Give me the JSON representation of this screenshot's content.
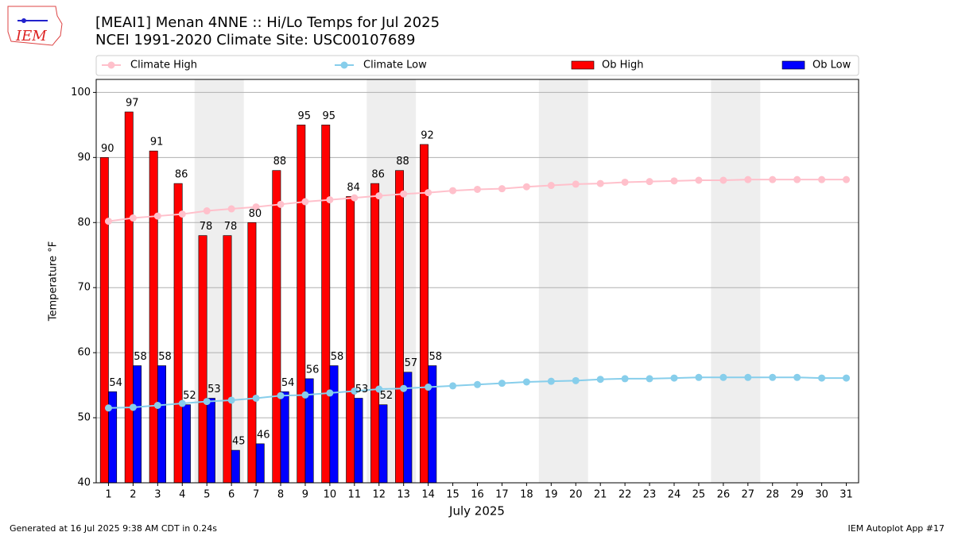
{
  "chart_data": {
    "type": "bar",
    "title": "[MEAI1] Menan 4NNE :: Hi/Lo Temps for Jul 2025",
    "subtitle": "NCEI 1991-2020 Climate Site: USC00107689",
    "x_label": "July 2025",
    "y_label": "Temperature °F",
    "logo_text": "IEM",
    "footer_left": "Generated at 16 Jul 2025 9:38 AM CDT in 0.24s",
    "footer_right": "IEM Autoplot App #17",
    "x": [
      1,
      2,
      3,
      4,
      5,
      6,
      7,
      8,
      9,
      10,
      11,
      12,
      13,
      14,
      15,
      16,
      17,
      18,
      19,
      20,
      21,
      22,
      23,
      24,
      25,
      26,
      27,
      28,
      29,
      30,
      31
    ],
    "xlim": [
      0.5,
      31.5
    ],
    "xticks": [
      1,
      2,
      3,
      4,
      5,
      6,
      7,
      8,
      9,
      10,
      11,
      12,
      13,
      14,
      15,
      16,
      17,
      18,
      19,
      20,
      21,
      22,
      23,
      24,
      25,
      26,
      27,
      28,
      29,
      30,
      31
    ],
    "ylim": [
      40,
      102
    ],
    "yticks": [
      40,
      50,
      60,
      70,
      80,
      90,
      100
    ],
    "grid": true,
    "legend": "top",
    "shaded_ranges": [
      [
        4.5,
        6.5
      ],
      [
        11.5,
        13.5
      ],
      [
        18.5,
        20.5
      ],
      [
        25.5,
        27.5
      ]
    ],
    "shade_color": "#eeeeee",
    "series": [
      {
        "name": "Climate High",
        "type": "line",
        "color": "#ffc0cb",
        "values": [
          80.2,
          80.7,
          81.0,
          81.3,
          81.8,
          82.1,
          82.4,
          82.8,
          83.2,
          83.5,
          83.8,
          84.1,
          84.4,
          84.6,
          84.9,
          85.1,
          85.2,
          85.5,
          85.7,
          85.9,
          86.0,
          86.2,
          86.3,
          86.4,
          86.5,
          86.5,
          86.6,
          86.6,
          86.6,
          86.6,
          86.6
        ]
      },
      {
        "name": "Climate Low",
        "type": "line",
        "color": "#87ceeb",
        "values": [
          51.5,
          51.6,
          51.9,
          52.2,
          52.5,
          52.7,
          53.0,
          53.4,
          53.5,
          53.8,
          54.1,
          54.4,
          54.5,
          54.7,
          54.9,
          55.1,
          55.3,
          55.5,
          55.6,
          55.7,
          55.9,
          56.0,
          56.0,
          56.1,
          56.2,
          56.2,
          56.2,
          56.2,
          56.2,
          56.1,
          56.1
        ]
      },
      {
        "name": "Ob High",
        "type": "bar",
        "color": "#ff0000",
        "values": [
          90,
          97,
          91,
          86,
          78,
          78,
          80,
          88,
          95,
          95,
          84,
          86,
          88,
          92,
          null,
          null,
          null,
          null,
          null,
          null,
          null,
          null,
          null,
          null,
          null,
          null,
          null,
          null,
          null,
          null,
          null
        ]
      },
      {
        "name": "Ob Low",
        "type": "bar",
        "color": "#0000ff",
        "values": [
          54,
          58,
          58,
          52,
          53,
          45,
          46,
          54,
          56,
          58,
          53,
          52,
          57,
          58,
          null,
          null,
          null,
          null,
          null,
          null,
          null,
          null,
          null,
          null,
          null,
          null,
          null,
          null,
          null,
          null,
          null
        ]
      }
    ]
  }
}
